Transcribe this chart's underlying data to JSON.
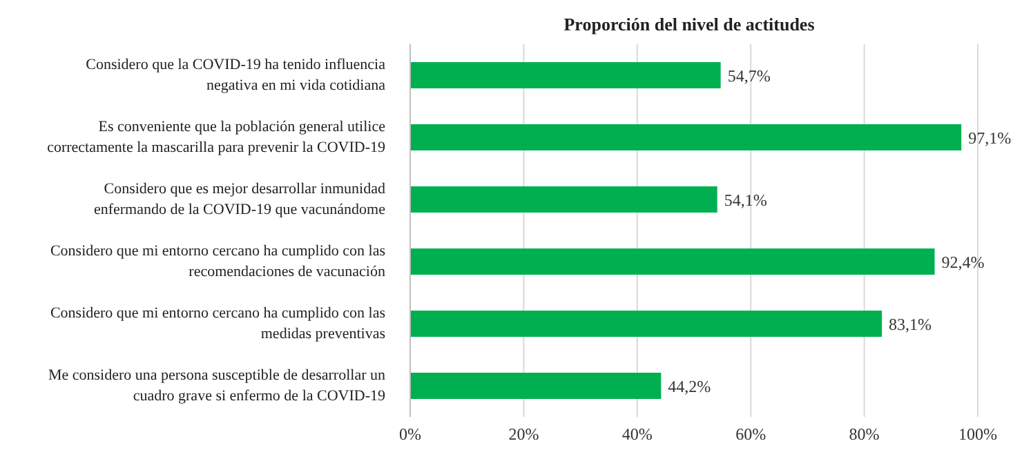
{
  "chart_data": {
    "type": "bar",
    "orientation": "horizontal",
    "title": "Proporción del nivel de actitudes",
    "categories": [
      "Considero que la COVID-19 ha tenido influencia negativa en mi vida cotidiana",
      "Es conveniente que la población general utilice correctamente la mascarilla para prevenir la COVID-19",
      "Considero que es mejor desarrollar inmunidad enfermando de la COVID-19 que vacunándome",
      "Considero que mi entorno cercano ha cumplido con las recomendaciones de vacunación",
      "Considero que mi entorno cercano ha cumplido con las medidas preventivas",
      "Me considero una persona susceptible de desarrollar un cuadro grave si enfermo de la COVID-19"
    ],
    "values": [
      54.7,
      97.1,
      54.1,
      92.4,
      83.1,
      44.2
    ],
    "value_labels": [
      "54,7%",
      "97,1%",
      "54,1%",
      "92,4%",
      "83,1%",
      "44,2%"
    ],
    "color": "#00b050",
    "xlim": [
      0,
      100
    ],
    "xticks": [
      {
        "value": 0,
        "label": "0%"
      },
      {
        "value": 20,
        "label": "20%"
      },
      {
        "value": 40,
        "label": "40%"
      },
      {
        "value": 60,
        "label": "60%"
      },
      {
        "value": 80,
        "label": "80%"
      },
      {
        "value": 100,
        "label": "100%"
      }
    ],
    "grid": "x"
  }
}
